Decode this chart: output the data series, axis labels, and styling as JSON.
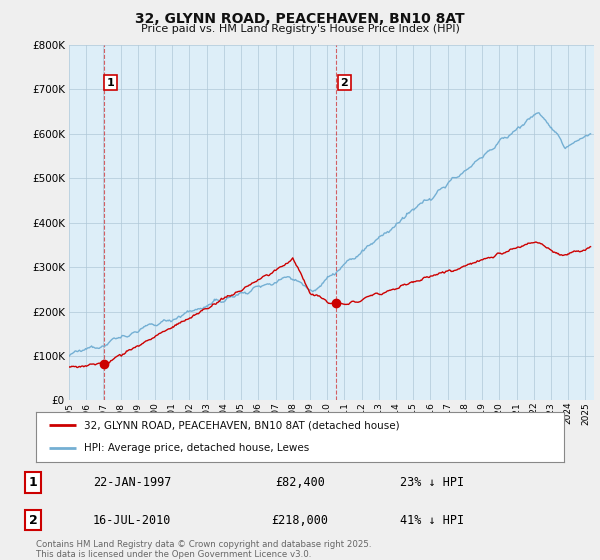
{
  "title": "32, GLYNN ROAD, PEACEHAVEN, BN10 8AT",
  "subtitle": "Price paid vs. HM Land Registry's House Price Index (HPI)",
  "legend_line1": "32, GLYNN ROAD, PEACEHAVEN, BN10 8AT (detached house)",
  "legend_line2": "HPI: Average price, detached house, Lewes",
  "sale1_label": "1",
  "sale1_date": "22-JAN-1997",
  "sale1_price": "£82,400",
  "sale1_hpi": "23% ↓ HPI",
  "sale1_year": 1997.06,
  "sale1_value": 82400,
  "sale2_label": "2",
  "sale2_date": "16-JUL-2010",
  "sale2_price": "£218,000",
  "sale2_hpi": "41% ↓ HPI",
  "sale2_year": 2010.54,
  "sale2_value": 218000,
  "footer": "Contains HM Land Registry data © Crown copyright and database right 2025.\nThis data is licensed under the Open Government Licence v3.0.",
  "line_color_red": "#cc0000",
  "line_color_blue": "#74afd3",
  "fill_color_blue": "#dceef7",
  "background_color": "#efefef",
  "plot_bg_color": "#ddeef8",
  "ylim": [
    0,
    800000
  ],
  "xlim_start": 1995.0,
  "xlim_end": 2025.5
}
